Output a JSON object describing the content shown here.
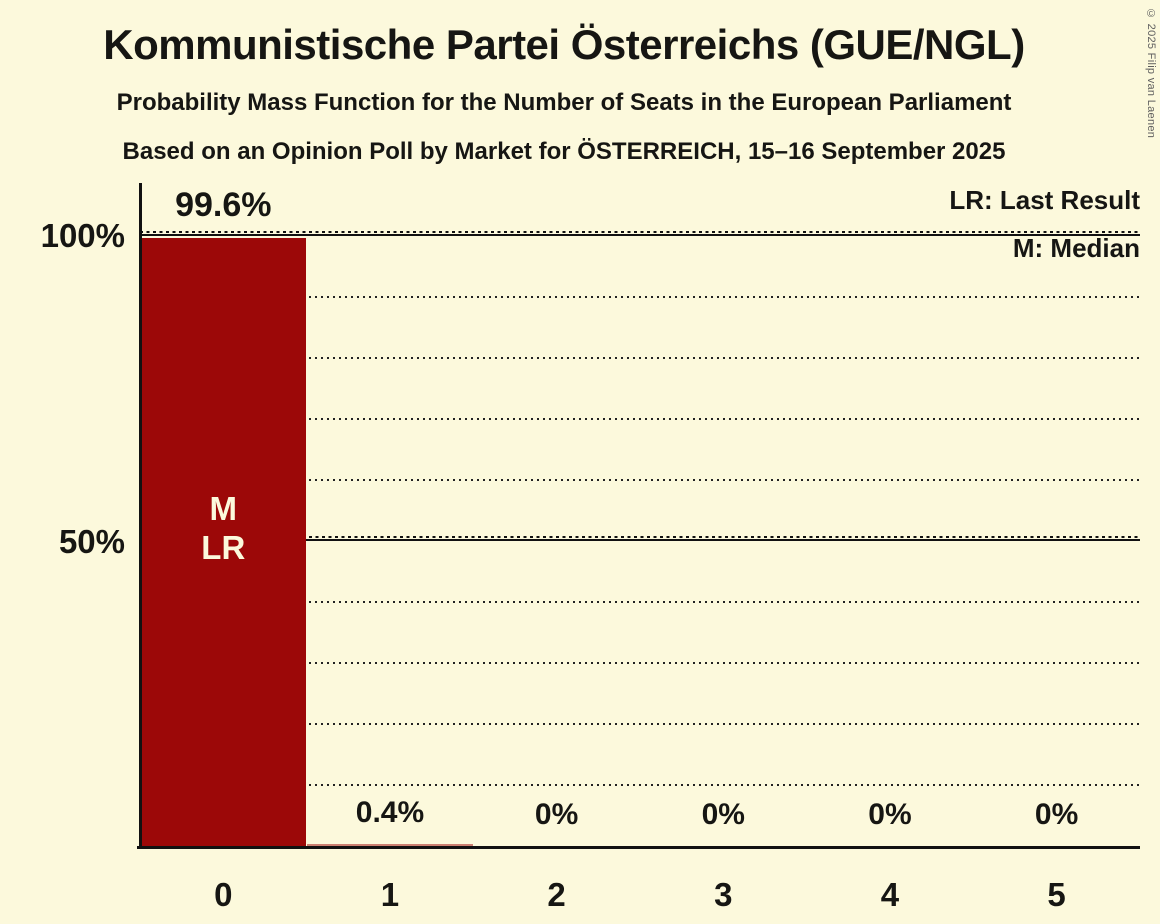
{
  "title": "Kommunistische Partei Österreichs (GUE/NGL)",
  "subtitles": {
    "line1": "Probability Mass Function for the Number of Seats in the European Parliament",
    "line2": "Based on an Opinion Poll by Market for ÖSTERREICH, 15–16 September 2025"
  },
  "copyright": "© 2025 Filip van Laenen",
  "legend": {
    "last_result": "LR: Last Result",
    "median": "M: Median"
  },
  "y_axis": {
    "labels": [
      "100%",
      "50%"
    ]
  },
  "bar_annotations": {
    "median": "M",
    "last_result": "LR"
  },
  "chart_data": {
    "type": "bar",
    "title": "Probability Mass Function for the Number of Seats in the European Parliament",
    "subtitle": "Based on an Opinion Poll by Market for ÖSTERREICH, 15–16 September 2025",
    "categories": [
      "0",
      "1",
      "2",
      "3",
      "4",
      "5"
    ],
    "values": [
      99.6,
      0.4,
      0,
      0,
      0,
      0
    ],
    "value_labels": [
      "99.6%",
      "0.4%",
      "0%",
      "0%",
      "0%",
      "0%"
    ],
    "xlabel": "",
    "ylabel": "",
    "ylim": [
      0,
      100
    ],
    "y_tick_labels_shown": [
      "100%",
      "50%"
    ],
    "gridline_interval_pct": 10,
    "solid_gridlines_pct": [
      50,
      100
    ],
    "grid": "dotted horizontal lines every 10%, solid at 50% and 100%",
    "legend_position": "top-right",
    "median_seat": 0,
    "last_result_seat": 0,
    "colors": {
      "bar": "#9c0808",
      "background": "#fcf9dc",
      "text": "#161613",
      "bar_text": "#fcf9dc",
      "muted": "#5f5f5f"
    }
  }
}
